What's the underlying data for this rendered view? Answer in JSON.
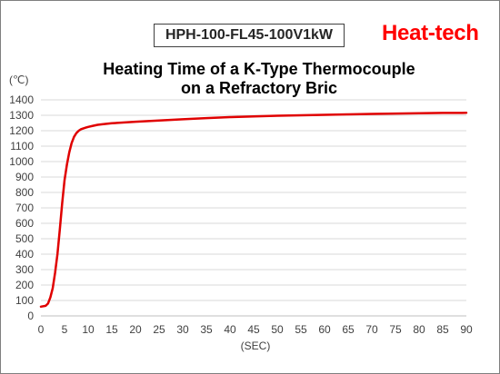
{
  "header": {
    "model_label": "HPH-100-FL45-100V1kW",
    "brand": "Heat-tech"
  },
  "colors": {
    "brand": "#ff0000",
    "series": "#e00000",
    "grid": "#d9d9d9"
  },
  "chart_data": {
    "type": "line",
    "title_line1": "Heating Time of a K-Type Thermocouple",
    "title_line2": "on a Refractory Bric",
    "xlabel": "(SEC)",
    "ylabel": "(℃)",
    "xlim": [
      0,
      90
    ],
    "ylim": [
      0,
      1400
    ],
    "xticks": [
      0,
      5,
      10,
      15,
      20,
      25,
      30,
      35,
      40,
      45,
      50,
      55,
      60,
      65,
      70,
      75,
      80,
      85,
      90
    ],
    "yticks": [
      0,
      100,
      200,
      300,
      400,
      500,
      600,
      700,
      800,
      900,
      1000,
      1100,
      1200,
      1300,
      1400
    ],
    "grid": true,
    "legend": "none",
    "series": [
      {
        "x": [
          0,
          1,
          1.5,
          2,
          2.5,
          3,
          3.5,
          4,
          4.5,
          5,
          5.5,
          6,
          6.5,
          7,
          7.5,
          8,
          8.5,
          9,
          9.5,
          10,
          11,
          12,
          13,
          15,
          20,
          25,
          30,
          35,
          40,
          45,
          50,
          55,
          60,
          65,
          70,
          75,
          80,
          85,
          90
        ],
        "y": [
          60,
          65,
          80,
          120,
          180,
          280,
          400,
          560,
          730,
          880,
          980,
          1060,
          1120,
          1160,
          1185,
          1200,
          1210,
          1215,
          1220,
          1225,
          1232,
          1238,
          1242,
          1248,
          1258,
          1266,
          1274,
          1282,
          1288,
          1293,
          1297,
          1300,
          1303,
          1306,
          1309,
          1311,
          1313,
          1315,
          1316
        ]
      }
    ]
  }
}
